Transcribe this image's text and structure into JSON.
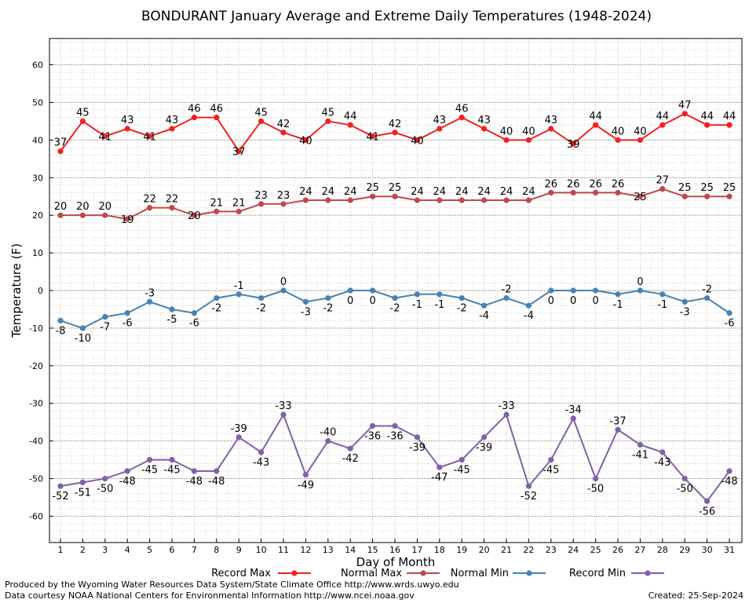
{
  "chart_data": {
    "type": "line",
    "title": "BONDURANT January Average and Extreme Daily Temperatures (1948-2024)",
    "xlabel": "Day of Month",
    "ylabel": "Temperature (F)",
    "ylim": [
      -67,
      67
    ],
    "yticks": [
      -60,
      -50,
      -40,
      -30,
      -20,
      -10,
      0,
      10,
      20,
      30,
      40,
      50,
      60
    ],
    "grid": true,
    "legend_position": "bottom",
    "x": [
      1,
      2,
      3,
      4,
      5,
      6,
      7,
      8,
      9,
      10,
      11,
      12,
      13,
      14,
      15,
      16,
      17,
      18,
      19,
      20,
      21,
      22,
      23,
      24,
      25,
      26,
      27,
      28,
      29,
      30,
      31
    ],
    "series": [
      {
        "name": "Record Max",
        "color": "#ee2222",
        "values": [
          37,
          45,
          41,
          43,
          41,
          43,
          46,
          46,
          37,
          45,
          42,
          40,
          45,
          44,
          41,
          42,
          40,
          43,
          46,
          43,
          40,
          40,
          43,
          39,
          44,
          40,
          40,
          44,
          47,
          44,
          44
        ]
      },
      {
        "name": "Normal Max",
        "color": "#c04848",
        "values": [
          20,
          20,
          20,
          19,
          22,
          22,
          20,
          21,
          21,
          23,
          23,
          24,
          24,
          24,
          25,
          25,
          24,
          24,
          24,
          24,
          24,
          24,
          26,
          26,
          26,
          26,
          25,
          27,
          25,
          25,
          25
        ]
      },
      {
        "name": "Normal Min",
        "color": "#4682b4",
        "values": [
          -8,
          -10,
          -7,
          -6,
          -3,
          -5,
          -6,
          -2,
          -1,
          -2,
          0,
          -3,
          -2,
          0,
          0,
          -2,
          -1,
          -1,
          -2,
          -4,
          -2,
          -4,
          0,
          0,
          0,
          -1,
          0,
          -1,
          -3,
          -2,
          -6
        ]
      },
      {
        "name": "Record Min",
        "color": "#8060a8",
        "values": [
          -52,
          -51,
          -50,
          -48,
          -45,
          -45,
          -48,
          -48,
          -39,
          -43,
          -33,
          -49,
          -40,
          -42,
          -36,
          -36,
          -39,
          -47,
          -45,
          -39,
          -33,
          -52,
          -45,
          -34,
          -50,
          -37,
          -41,
          -43,
          -50,
          -56,
          -48
        ]
      }
    ]
  },
  "footer": {
    "left_line1": "Produced by the Wyoming Water Resources Data System/State Climate Office http://www.wrds.uwyo.edu",
    "left_line2": "Data courtesy NOAA National Centers for Environmental Information http://www.ncei.noaa.gov",
    "right": "Created:  25-Sep-2024"
  }
}
